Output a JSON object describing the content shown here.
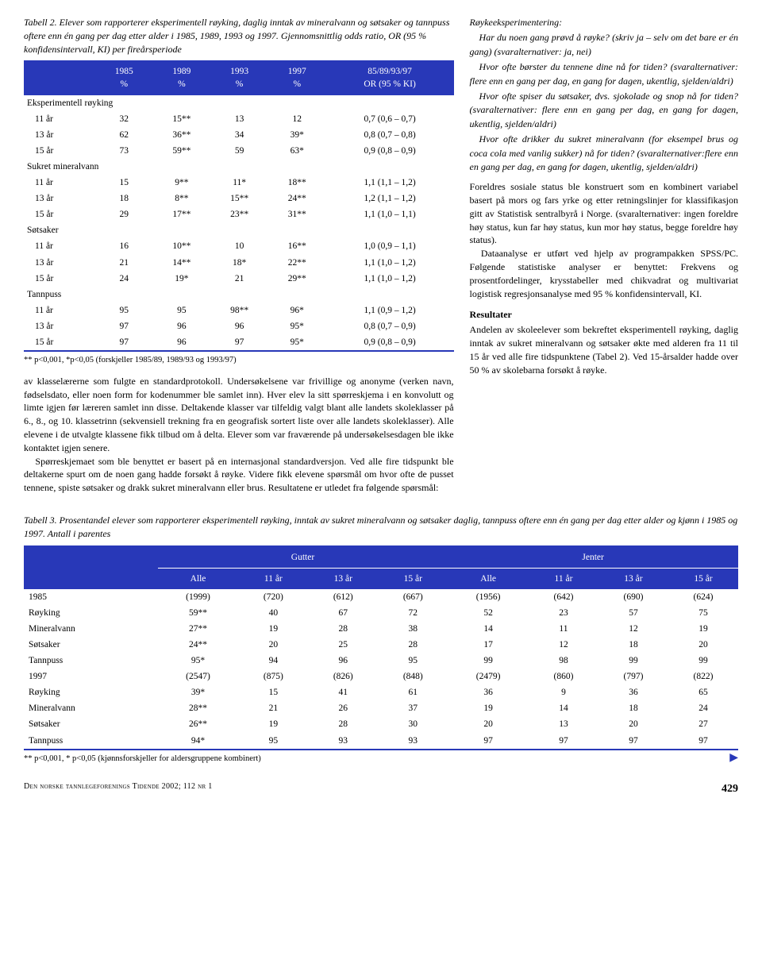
{
  "table2": {
    "caption": "Tabell 2. Elever som rapporterer eksperimentell røyking, daglig inntak av mineralvann og søtsaker og tannpuss oftere enn én gang per dag etter alder i 1985, 1989, 1993 og 1997. Gjennomsnittlig odds ratio, OR (95 % konfidensintervall, KI) per fireårsperiode",
    "header_cols": [
      "",
      "1985\n%",
      "1989\n%",
      "1993\n%",
      "1997\n%",
      "85/89/93/97\nOR (95 % KI)"
    ],
    "sections": [
      {
        "label": "Eksperimentell røyking",
        "rows": [
          [
            "11 år",
            "32",
            "15**",
            "13",
            "12",
            "0,7 (0,6 – 0,7)"
          ],
          [
            "13 år",
            "62",
            "36**",
            "34",
            "39*",
            "0,8 (0,7 – 0,8)"
          ],
          [
            "15 år",
            "73",
            "59**",
            "59",
            "63*",
            "0,9 (0,8 – 0,9)"
          ]
        ]
      },
      {
        "label": "Sukret mineralvann",
        "rows": [
          [
            "11 år",
            "15",
            "9**",
            "11*",
            "18**",
            "1,1 (1,1 – 1,2)"
          ],
          [
            "13 år",
            "18",
            "8**",
            "15**",
            "24**",
            "1,2 (1,1 – 1,2)"
          ],
          [
            "15 år",
            "29",
            "17**",
            "23**",
            "31**",
            "1,1 (1,0 – 1,1)"
          ]
        ]
      },
      {
        "label": "Søtsaker",
        "rows": [
          [
            "11 år",
            "16",
            "10**",
            "10",
            "16**",
            "1,0 (0,9 – 1,1)"
          ],
          [
            "13 år",
            "21",
            "14**",
            "18*",
            "22**",
            "1,1 (1,0 – 1,2)"
          ],
          [
            "15 år",
            "24",
            "19*",
            "21",
            "29**",
            "1,1 (1,0 – 1,2)"
          ]
        ]
      },
      {
        "label": "Tannpuss",
        "rows": [
          [
            "11 år",
            "95",
            "95",
            "98**",
            "96*",
            "1,1 (0,9 – 1,2)"
          ],
          [
            "13 år",
            "97",
            "96",
            "96",
            "95*",
            "0,8 (0,7 – 0,9)"
          ],
          [
            "15 år",
            "97",
            "96",
            "97",
            "95*",
            "0,9 (0,8 – 0,9)"
          ]
        ]
      }
    ],
    "footnote": "** p<0,001, *p<0,05 (forskjeller 1985/89, 1989/93 og 1993/97)",
    "header_bg": "#2838b8",
    "header_fg": "#ffffff"
  },
  "body_left": [
    "av klasselærerne som fulgte en standardprotokoll. Undersøkelsene var frivillige og anonyme (verken navn, fødselsdato, eller noen form for kodenummer ble samlet inn). Hver elev la sitt spørreskjema i en konvolutt og limte igjen før læreren samlet inn disse. Deltakende klasser var tilfeldig valgt blant alle landets skoleklasser på 6., 8., og 10. klassetrinn (sekvensiell trekning fra en geografisk sortert liste over alle landets skoleklasser). Alle elevene i de utvalgte klassene fikk tilbud om å delta. Elever som var fraværende på undersøkelsesdagen ble ikke kontaktet igjen senere.",
    "Spørreskjemaet som ble benyttet er basert på en internasjonal standardversjon. Ved alle fire tidspunkt ble deltakerne spurt om de noen gang hadde forsøkt å røyke. Videre fikk elevene spørsmål om hvor ofte de pusset tennene, spiste søtsaker og drakk sukret mineralvann eller brus. Resultatene er utledet fra følgende spørsmål:"
  ],
  "sidebar": {
    "title": "Røykeeksperimentering:",
    "paragraphs": [
      "Har du noen gang prøvd å røyke? (skriv ja – selv om det bare er én gang) (svaralternativer: ja, nei)",
      "Hvor ofte børster du tennene dine nå for tiden? (svaralternativer: flere enn en gang per dag, en gang for dagen, ukentlig, sjelden/aldri)",
      "Hvor ofte spiser du søtsaker, dvs. sjokolade og snop nå for tiden? (svaralternativer: flere enn en gang per dag, en gang for dagen, ukentlig, sjelden/aldri)",
      "Hvor ofte drikker du sukret mineralvann (for eksempel brus og coca cola med vanlig sukker) nå for tiden? (svaralternativer:flere enn en gang per dag, en gang for dagen, ukentlig, sjelden/aldri)"
    ]
  },
  "lower_right": [
    "Foreldres sosiale status ble konstruert som en kombinert variabel basert på mors og fars yrke og etter retningslinjer for klassifikasjon gitt av Statistisk sentralbyrå i Norge. (svaralternativer: ingen foreldre høy status, kun far høy status, kun mor høy status, begge foreldre høy status).",
    "Dataanalyse er utført ved hjelp av programpakken SPSS/PC. Følgende statistiske analyser er benyttet: Frekvens og prosentfordelinger, krysstabeller med chikvadrat og multivariat logistisk regresjonsanalyse med 95 % konfidensintervall, KI."
  ],
  "results": {
    "heading": "Resultater",
    "text": "Andelen av skoleelever som bekreftet eksperimentell røyking, daglig inntak av sukret mineralvann og søtsaker økte med alderen fra 11 til 15 år ved alle fire tidspunktene (Tabel 2). Ved 15-årsalder hadde over 50 % av skolebarna forsøkt å røyke."
  },
  "table3": {
    "caption": "Tabell 3. Prosentandel elever som rapporterer eksperimentell røyking, inntak av sukret mineralvann og søtsaker daglig, tannpuss oftere enn én gang per dag etter alder og kjønn i 1985 og 1997. Antall i parentes",
    "group_headers": [
      "",
      "Gutter",
      "Jenter"
    ],
    "sub_headers": [
      "",
      "Alle",
      "11 år",
      "13 år",
      "15 år",
      "Alle",
      "11 år",
      "13 år",
      "15 år"
    ],
    "rows": [
      [
        "1985",
        "(1999)",
        "(720)",
        "(612)",
        "(667)",
        "(1956)",
        "(642)",
        "(690)",
        "(624)"
      ],
      [
        "Røyking",
        "59**",
        "40",
        "67",
        "72",
        "52",
        "23",
        "57",
        "75"
      ],
      [
        "Mineralvann",
        "27**",
        "19",
        "28",
        "38",
        "14",
        "11",
        "12",
        "19"
      ],
      [
        "Søtsaker",
        "24**",
        "20",
        "25",
        "28",
        "17",
        "12",
        "18",
        "20"
      ],
      [
        "Tannpuss",
        "95*",
        "94",
        "96",
        "95",
        "99",
        "98",
        "99",
        "99"
      ],
      [
        "1997",
        "(2547)",
        "(875)",
        "(826)",
        "(848)",
        "(2479)",
        "(860)",
        "(797)",
        "(822)"
      ],
      [
        "Røyking",
        "39*",
        "15",
        "41",
        "61",
        "36",
        "9",
        "36",
        "65"
      ],
      [
        "Mineralvann",
        "28**",
        "21",
        "26",
        "37",
        "19",
        "14",
        "18",
        "24"
      ],
      [
        "Søtsaker",
        "26**",
        "19",
        "28",
        "30",
        "20",
        "13",
        "20",
        "27"
      ],
      [
        "Tannpuss",
        "94*",
        "95",
        "93",
        "93",
        "97",
        "97",
        "97",
        "97"
      ]
    ],
    "footnote": "** p<0,001, * p<0,05 (kjønnsforskjeller for aldersgruppene kombinert)",
    "header_bg": "#2838b8",
    "header_fg": "#ffffff"
  },
  "footer": {
    "journal": "Den norske tannlegeforenings Tidende 2002; 112 nr 1",
    "page": "429"
  }
}
